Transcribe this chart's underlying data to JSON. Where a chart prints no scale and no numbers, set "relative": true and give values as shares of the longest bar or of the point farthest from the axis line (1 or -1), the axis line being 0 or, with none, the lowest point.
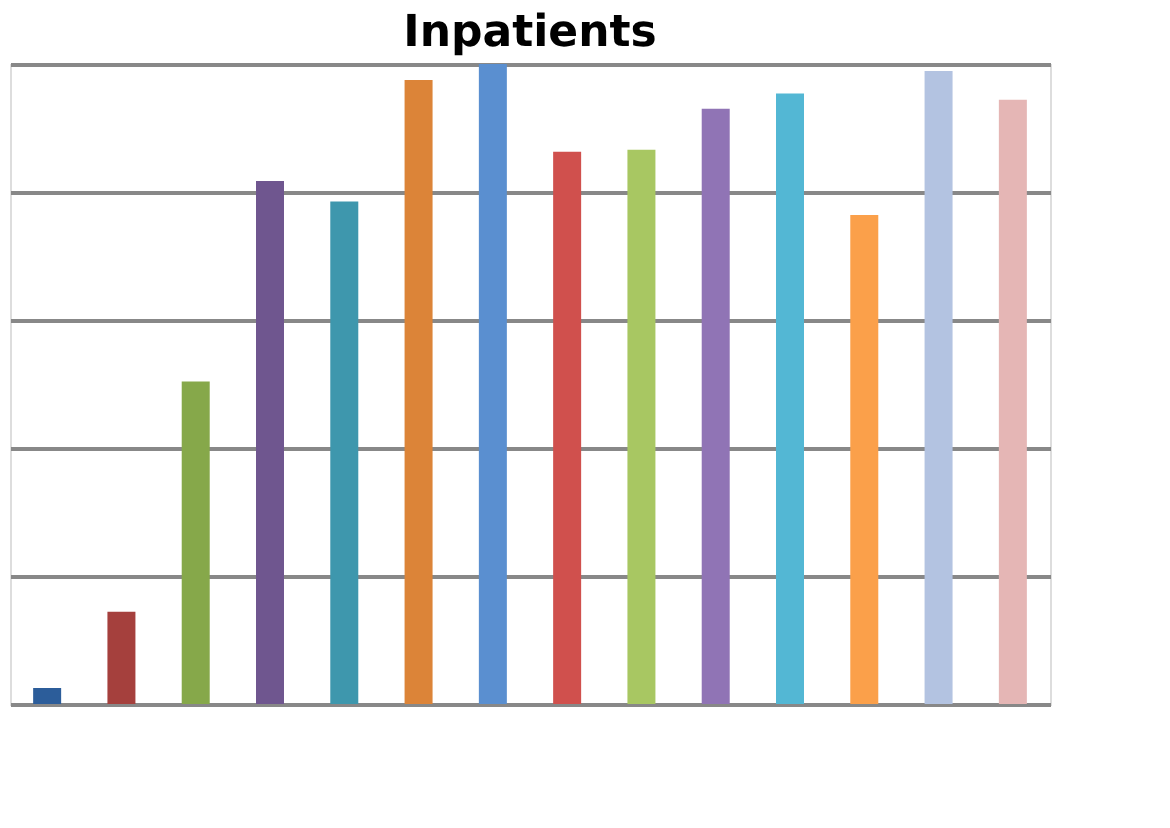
{
  "chart_data": {
    "type": "bar",
    "title": "Inpatients",
    "relative": true,
    "grid": "y",
    "categories": [
      null,
      null,
      null,
      null,
      null,
      null,
      null,
      null,
      null,
      null,
      null,
      null,
      null,
      null
    ],
    "values": [
      0.025,
      0.144,
      0.504,
      0.817,
      0.785,
      0.975,
      1,
      0.863,
      0.866,
      0.93,
      0.954,
      0.764,
      0.989,
      0.944
    ],
    "colors": [
      "#2c5d9a",
      "#a5403d",
      "#86a84a",
      "#6f568f",
      "#3e97ad",
      "#dc8438",
      "#5a8fd0",
      "#d0504d",
      "#a8c762",
      "#9074b5",
      "#53b7d4",
      "#fba04a",
      "#b3c3e1",
      "#e5b6b5"
    ]
  }
}
